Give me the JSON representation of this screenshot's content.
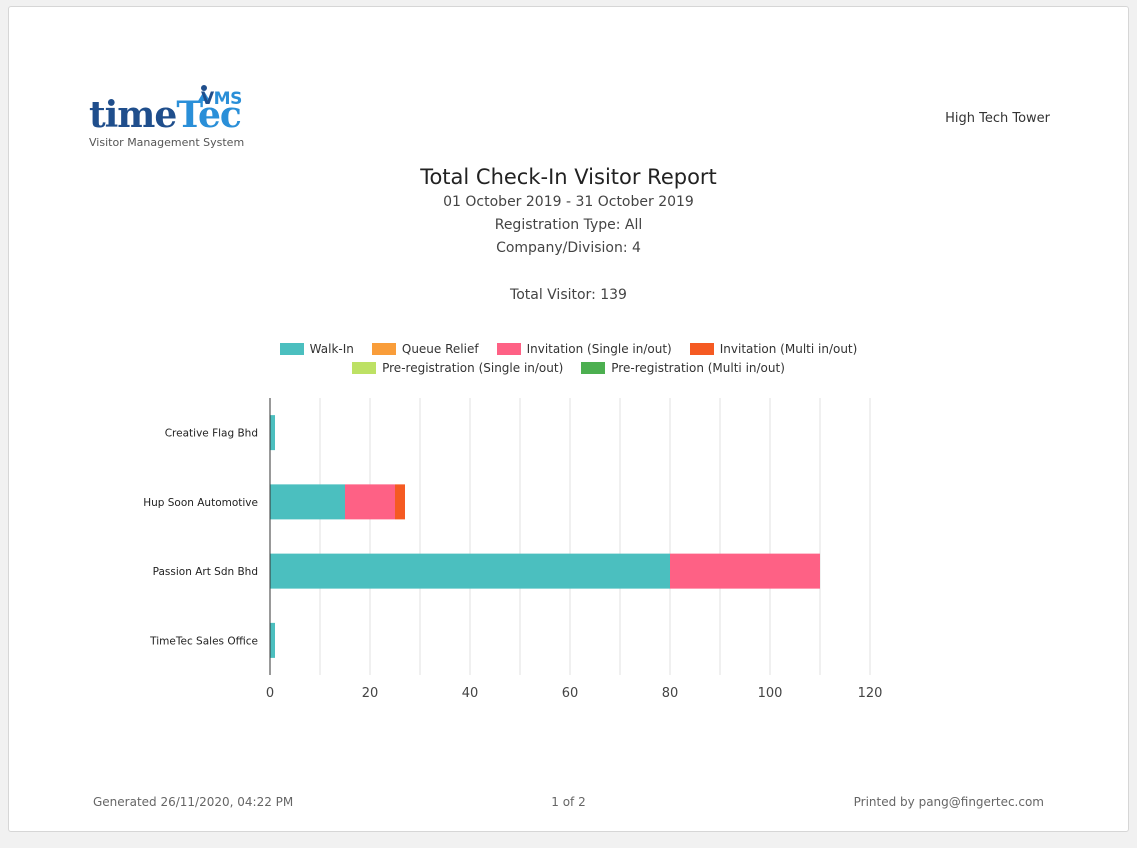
{
  "logo": {
    "word_part1": "time",
    "word_part2": "Tec",
    "vms": "MS",
    "tagline": "Visitor Management System",
    "colors": {
      "dark": "#1f4e8c",
      "light": "#2a8fd8"
    }
  },
  "header": {
    "site_name": "High Tech Tower"
  },
  "report": {
    "title": "Total Check-In Visitor Report",
    "date_range": "01 October 2019 - 31 October 2019",
    "registration_type": "Registration Type: All",
    "company_division": "Company/Division: 4",
    "total_visitor": "Total Visitor: 139"
  },
  "chart_data": {
    "type": "bar",
    "orientation": "horizontal",
    "stacked": true,
    "categories": [
      "Creative Flag Bhd",
      "Hup Soon Automotive",
      "Passion Art  Sdn Bhd",
      "TimeTec Sales Office"
    ],
    "series": [
      {
        "name": "Walk-In",
        "color": "#4bbfbf",
        "values": [
          1,
          15,
          80,
          1
        ]
      },
      {
        "name": "Queue Relief",
        "color": "#f99d3a",
        "values": [
          0,
          0,
          0,
          0
        ]
      },
      {
        "name": "Invitation (Single in/out)",
        "color": "#fe6185",
        "values": [
          0,
          10,
          30,
          0
        ]
      },
      {
        "name": "Invitation (Multi in/out)",
        "color": "#f55a22",
        "values": [
          0,
          2,
          0,
          0
        ]
      },
      {
        "name": "Pre-registration (Single in/out)",
        "color": "#bde164",
        "values": [
          0,
          0,
          0,
          0
        ]
      },
      {
        "name": "Pre-registration (Multi in/out)",
        "color": "#4caf50",
        "values": [
          0,
          0,
          0,
          0
        ]
      }
    ],
    "xlim": [
      0,
      120
    ],
    "xticks": [
      0,
      20,
      40,
      60,
      80,
      100,
      120
    ],
    "grid": true,
    "legend_position": "top",
    "title": "",
    "xlabel": "",
    "ylabel": ""
  },
  "footer": {
    "generated": "Generated 26/11/2020, 04:22 PM",
    "page": "1 of 2",
    "printed_by": "Printed by pang@fingertec.com"
  }
}
